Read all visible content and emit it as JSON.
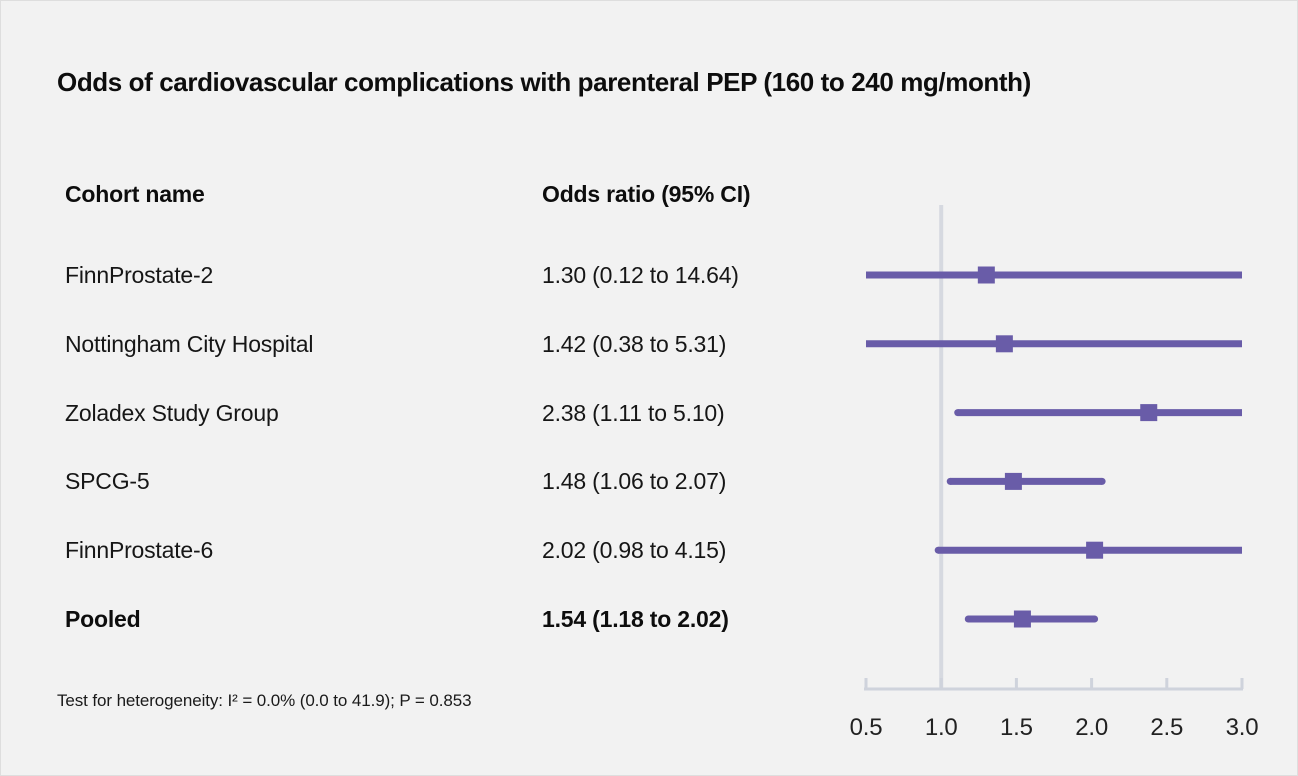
{
  "title": "Odds of cardiovascular complications with parenteral PEP (160 to 240 mg/month)",
  "columns": {
    "cohort": "Cohort name",
    "odds": "Odds ratio (95% CI)"
  },
  "footnote": "Test for heterogeneity: I² = 0.0% (0.0 to 41.9); P = 0.853",
  "colors": {
    "background": "#f2f2f2",
    "series": "#695ca8",
    "reference_line": "#d6d9e0",
    "axis": "#cfd3dc",
    "axis_label": "#222222"
  },
  "chart_data": {
    "type": "forest",
    "title": "Odds of cardiovascular complications with parenteral PEP (160 to 240 mg/month)",
    "xlabel": "",
    "xlim": [
      0.5,
      3.0
    ],
    "x_ticks": [
      "0.5",
      "1.0",
      "1.5",
      "2.0",
      "2.5",
      "3.0"
    ],
    "x_tick_values": [
      0.5,
      1.0,
      1.5,
      2.0,
      2.5,
      3.0
    ],
    "scale": "linear",
    "reference_line": 1.0,
    "grid": false,
    "legend": "none",
    "rows": [
      {
        "label": "FinnProstate-2",
        "display": "1.30 (0.12 to 14.64)",
        "estimate": 1.3,
        "ci_low": 0.12,
        "ci_high": 14.64,
        "bold": false
      },
      {
        "label": "Nottingham City Hospital",
        "display": "1.42 (0.38 to 5.31)",
        "estimate": 1.42,
        "ci_low": 0.38,
        "ci_high": 5.31,
        "bold": false
      },
      {
        "label": "Zoladex Study Group",
        "display": "2.38 (1.11 to 5.10)",
        "estimate": 2.38,
        "ci_low": 1.11,
        "ci_high": 5.1,
        "bold": false
      },
      {
        "label": "SPCG-5",
        "display": "1.48 (1.06 to 2.07)",
        "estimate": 1.48,
        "ci_low": 1.06,
        "ci_high": 2.07,
        "bold": false
      },
      {
        "label": "FinnProstate-6",
        "display": "2.02 (0.98 to 4.15)",
        "estimate": 2.02,
        "ci_low": 0.98,
        "ci_high": 4.15,
        "bold": false
      },
      {
        "label": "Pooled",
        "display": "1.54 (1.18 to 2.02)",
        "estimate": 1.54,
        "ci_low": 1.18,
        "ci_high": 2.02,
        "bold": true
      }
    ]
  }
}
